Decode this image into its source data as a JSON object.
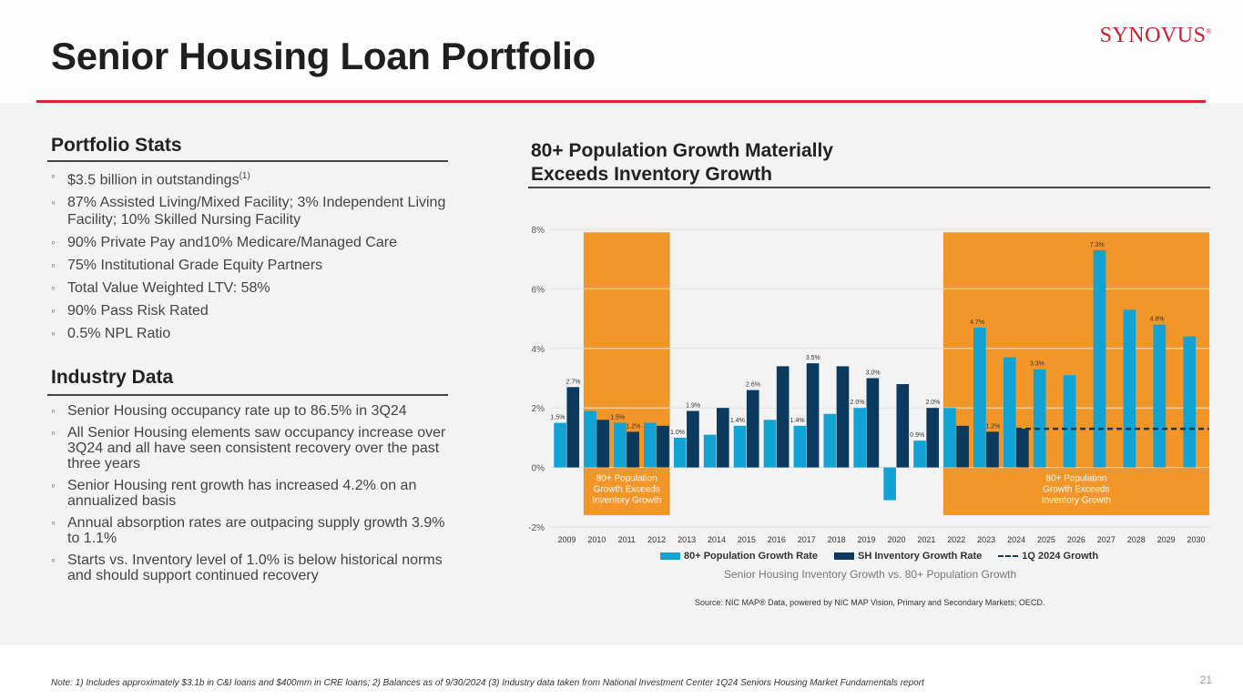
{
  "header": {
    "title": "Senior Housing Loan Portfolio",
    "logo": "SYNOVUS",
    "logo_mark": "®"
  },
  "portfolio_stats": {
    "title": "Portfolio Stats",
    "items": [
      {
        "text": "$3.5 billion in outstandings",
        "footnote": "(1)"
      },
      {
        "text": "87% Assisted Living/Mixed Facility; 3% Independent Living Facility; 10% Skilled Nursing Facility"
      },
      {
        "text": "90% Private Pay and10% Medicare/Managed Care"
      },
      {
        "text": "75% Institutional Grade Equity Partners"
      },
      {
        "text": "Total Value Weighted LTV: 58%"
      },
      {
        "text": "90% Pass Risk Rated"
      },
      {
        "text": "0.5% NPL Ratio"
      }
    ]
  },
  "industry_data": {
    "title": "Industry Data",
    "items": [
      "Senior Housing occupancy rate up to 86.5% in 3Q24",
      "All Senior Housing elements saw occupancy increase over 3Q24 and all have seen consistent recovery over the past three years",
      "Senior Housing rent growth has increased 4.2% on an annualized basis",
      "Annual absorption rates are outpacing supply growth 3.9% to 1.1%",
      "Starts vs. Inventory level of 1.0% is below historical norms and should support continued recovery"
    ]
  },
  "chart_section": {
    "title_line1": "80+ Population Growth Materially",
    "title_line2": "Exceeds Inventory Growth"
  },
  "chart_data": {
    "type": "bar",
    "title": "Senior Housing Inventory Growth vs. 80+ Population Growth",
    "xlabel": "",
    "ylabel": "",
    "ylim": [
      -2,
      8
    ],
    "yticks": [
      "-2%",
      "0%",
      "2%",
      "4%",
      "6%",
      "8%"
    ],
    "ytick_values": [
      -2,
      0,
      2,
      4,
      6,
      8
    ],
    "grid": true,
    "legend_position": "bottom",
    "categories": [
      "2009",
      "2010",
      "2011",
      "2012",
      "2013",
      "2014",
      "2015",
      "2016",
      "2017",
      "2018",
      "2019",
      "2020",
      "2021",
      "2022",
      "2023",
      "2024",
      "2025",
      "2026",
      "2027",
      "2028",
      "2029",
      "2030"
    ],
    "series": [
      {
        "name": "80+ Population Growth Rate",
        "color": "#10a3d4",
        "values": [
          1.5,
          1.9,
          1.5,
          1.5,
          1.0,
          1.1,
          1.4,
          1.6,
          1.4,
          1.8,
          2.0,
          -1.1,
          0.9,
          2.0,
          4.7,
          3.7,
          3.3,
          3.1,
          7.3,
          5.3,
          4.8,
          4.4
        ],
        "labels": [
          "1.5%",
          null,
          "1.5%",
          null,
          "1.0%",
          null,
          "1.4%",
          null,
          "1.4%",
          null,
          "2.0%",
          null,
          "0.9%",
          null,
          "4.7%",
          null,
          "3.3%",
          null,
          "7.3%",
          null,
          "4.8%",
          null
        ]
      },
      {
        "name": "SH Inventory Growth Rate",
        "color": "#0b3a5e",
        "values": [
          2.7,
          1.6,
          1.2,
          1.4,
          1.9,
          2.0,
          2.6,
          3.4,
          3.5,
          3.4,
          3.0,
          2.8,
          2.0,
          1.4,
          1.2,
          1.3,
          null,
          null,
          null,
          null,
          null,
          null
        ],
        "labels": [
          "2.7%",
          null,
          "1.2%",
          null,
          "1.9%",
          null,
          "2.6%",
          null,
          "3.5%",
          null,
          "3.0%",
          null,
          "2.0%",
          null,
          "1.2%",
          null,
          null,
          null,
          null,
          null,
          null,
          null
        ]
      }
    ],
    "reference_line": {
      "name": "1Q 2024 Growth",
      "value": 1.3,
      "from": "2024",
      "to": "2030",
      "style": "dashed",
      "color": "#0b3a5e"
    },
    "highlight_regions": [
      {
        "from": "2010",
        "to": "2012",
        "label": "80+ Population Growth Exceeds Inventory Growth",
        "color": "#f3962a"
      },
      {
        "from": "2022",
        "to": "2030",
        "label": "80+ Population Growth Exceeds Inventory Growth",
        "color": "#f3962a"
      }
    ],
    "source": "Source: NIC MAP® Data, powered by NIC MAP Vision, Primary and Secondary Markets; OECD."
  },
  "legend": {
    "items": [
      "80+ Population Growth Rate",
      "SH Inventory Growth Rate",
      "1Q 2024 Growth"
    ]
  },
  "footer": {
    "note": "Note: 1) Includes approximately $3.1b in C&I loans and $400mm in CRE loans; 2) Balances as of 9/30/2024 (3) Industry data taken from National Investment Center 1Q24 Seniors Housing Market Fundamentals report",
    "page": "21"
  }
}
